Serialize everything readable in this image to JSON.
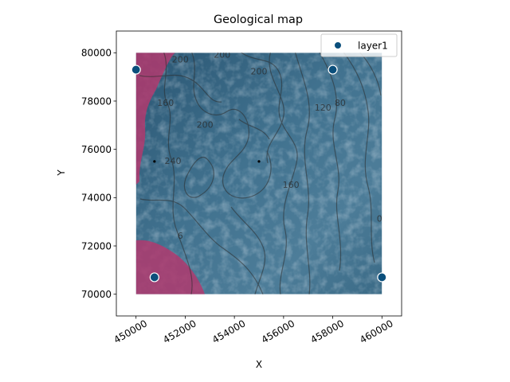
{
  "chart_data": {
    "type": "scatter",
    "title": "Geological map",
    "xlabel": "X",
    "ylabel": "Y",
    "xlim": [
      449200,
      460800
    ],
    "ylim": [
      69100,
      80900
    ],
    "extent": {
      "x": [
        450000,
        460000
      ],
      "y": [
        70000,
        80000
      ]
    },
    "x_ticks": [
      {
        "value": 450000,
        "label": "450000"
      },
      {
        "value": 452000,
        "label": "452000"
      },
      {
        "value": 454000,
        "label": "454000"
      },
      {
        "value": 456000,
        "label": "456000"
      },
      {
        "value": 458000,
        "label": "458000"
      },
      {
        "value": 460000,
        "label": "460000"
      }
    ],
    "y_ticks": [
      {
        "value": 70000,
        "label": "70000"
      },
      {
        "value": 72000,
        "label": "72000"
      },
      {
        "value": 74000,
        "label": "74000"
      },
      {
        "value": 76000,
        "label": "76000"
      },
      {
        "value": 78000,
        "label": "78000"
      },
      {
        "value": 80000,
        "label": "80000"
      }
    ],
    "x_tick_rotation_deg": 30,
    "grid": false,
    "legend_position": "top-right",
    "series": [
      {
        "name": "layer1",
        "color": "#0b4f7c",
        "points": [
          {
            "x": 450000,
            "y": 79300
          },
          {
            "x": 458000,
            "y": 79300
          },
          {
            "x": 450750,
            "y": 70700
          },
          {
            "x": 460000,
            "y": 70700
          }
        ]
      }
    ],
    "small_markers": [
      {
        "x": 450750,
        "y": 75500
      },
      {
        "x": 455000,
        "y": 75500
      }
    ],
    "contour_labels": [
      {
        "x": 451200,
        "y": 77800,
        "text": "160"
      },
      {
        "x": 451800,
        "y": 79600,
        "text": "200"
      },
      {
        "x": 453500,
        "y": 79800,
        "text": "200"
      },
      {
        "x": 455000,
        "y": 79100,
        "text": "200"
      },
      {
        "x": 452800,
        "y": 76900,
        "text": "200"
      },
      {
        "x": 451500,
        "y": 75400,
        "text": "240"
      },
      {
        "x": 457600,
        "y": 77600,
        "text": "120"
      },
      {
        "x": 458300,
        "y": 77800,
        "text": "80"
      },
      {
        "x": 456300,
        "y": 74400,
        "text": "160"
      },
      {
        "x": 451800,
        "y": 72300,
        "text": "6"
      },
      {
        "x": 459900,
        "y": 73000,
        "text": "0"
      },
      {
        "x": 449900,
        "y": 71800,
        "text": "1"
      }
    ],
    "map_colors": {
      "base": "#40718f",
      "dark": "#1f4761",
      "light": "#7fa1b5",
      "layer_pink": "#b03a6e",
      "contour": "#2d2d2d"
    }
  }
}
